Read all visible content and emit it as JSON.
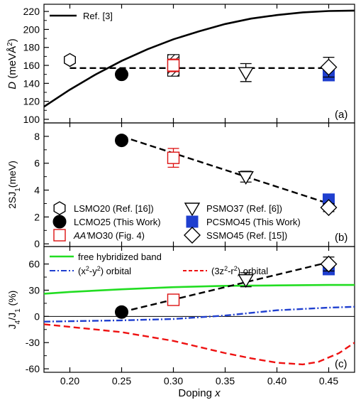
{
  "chart_data": {
    "type": "multi-panel",
    "x_axis": {
      "label_prefix": "Doping ",
      "label_var": "x",
      "range": [
        0.175,
        0.475
      ],
      "ticks": [
        0.2,
        0.25,
        0.3,
        0.35,
        0.4,
        0.45
      ],
      "tick_labels": [
        "0.20",
        "0.25",
        "0.30",
        "0.35",
        "0.40",
        "0.45"
      ]
    },
    "legend_entries": [
      {
        "marker": "hexagon-open",
        "label": "LSMO20 (Ref. [16])",
        "color": "#000000"
      },
      {
        "marker": "circle-filled",
        "label": "LCMO25 (This Work)",
        "color": "#000000"
      },
      {
        "marker": "square-open",
        "label_italic": "AA'",
        "label": "MO30 (Fig. 4)",
        "color": "#dd1111"
      },
      {
        "marker": "triangle-down-open",
        "label": "PSMO37 (Ref. [6])",
        "color": "#000000"
      },
      {
        "marker": "square-filled",
        "label": "PCSMO45 (This Work)",
        "color": "#1f3fcf"
      },
      {
        "marker": "diamond-open",
        "label": "SSMO45 (Ref. [15])",
        "color": "#000000"
      }
    ],
    "panels": [
      {
        "id": "a",
        "panel_label": "(a)",
        "y_label_var": "D",
        "y_label_unit": " (meVÅ",
        "y_label_sup": "2",
        "y_label_close": ")",
        "ylim": [
          96,
          228
        ],
        "y_ticks": [
          100,
          120,
          140,
          160,
          180,
          200,
          220
        ],
        "y_tick_labels": [
          "100",
          "120",
          "140",
          "160",
          "180",
          "200",
          "220"
        ],
        "series": [
          {
            "name": "Ref. [3]",
            "type": "line",
            "style": "solid",
            "color": "#000000",
            "x": [
              0.175,
              0.2,
              0.225,
              0.25,
              0.275,
              0.3,
              0.325,
              0.35,
              0.375,
              0.4,
              0.425,
              0.45,
              0.475
            ],
            "y": [
              114,
              133,
              150,
              165,
              178,
              189,
              198,
              206,
              212,
              216,
              219,
              220.5,
              221
            ]
          },
          {
            "type": "line",
            "style": "dashed",
            "color": "#000000",
            "x": [
              0.2,
              0.45
            ],
            "y": [
              157,
              157
            ]
          },
          {
            "type": "points",
            "marker": "hexagon-open",
            "color": "#000000",
            "x": [
              0.2
            ],
            "y": [
              166
            ],
            "err": [
              3
            ]
          },
          {
            "type": "points",
            "marker": "circle-filled",
            "color": "#000000",
            "x": [
              0.25
            ],
            "y": [
              150
            ],
            "err": [
              0
            ]
          },
          {
            "type": "points",
            "marker": "square-open",
            "color": "#dd1111",
            "x": [
              0.3
            ],
            "y": [
              160
            ],
            "err": [
              7
            ]
          },
          {
            "type": "points",
            "marker": "triangle-down-open",
            "color": "#000000",
            "x": [
              0.37
            ],
            "y": [
              152
            ],
            "err": [
              10
            ]
          },
          {
            "type": "points",
            "marker": "square-filled",
            "color": "#1f3fcf",
            "x": [
              0.45
            ],
            "y": [
              149
            ],
            "err": [
              0
            ]
          },
          {
            "type": "points",
            "marker": "diamond-open",
            "color": "#000000",
            "x": [
              0.45
            ],
            "y": [
              158
            ],
            "err": [
              11
            ]
          }
        ],
        "hatched_band": {
          "x": 0.3,
          "y": [
            148,
            172
          ]
        }
      },
      {
        "id": "b",
        "panel_label": "(b)",
        "y_label_pre": "2SJ",
        "y_label_sub": "1",
        "y_label_post": "(meV)",
        "ylim": [
          -0.2,
          9.0
        ],
        "y_ticks": [
          0,
          2,
          4,
          6,
          8
        ],
        "y_tick_labels": [
          "0",
          "2",
          "4",
          "6",
          "8"
        ],
        "series": [
          {
            "type": "line",
            "style": "dashed",
            "color": "#000000",
            "x": [
              0.25,
              0.45
            ],
            "y": [
              8.0,
              3.0
            ]
          },
          {
            "type": "points",
            "marker": "circle-filled",
            "color": "#000000",
            "x": [
              0.25
            ],
            "y": [
              7.7
            ],
            "err": [
              0
            ]
          },
          {
            "type": "points",
            "marker": "square-open",
            "color": "#dd1111",
            "x": [
              0.3
            ],
            "y": [
              6.4
            ],
            "err": [
              0.7
            ]
          },
          {
            "type": "points",
            "marker": "triangle-down-open",
            "color": "#000000",
            "x": [
              0.37
            ],
            "y": [
              5.0
            ],
            "err": [
              0.4
            ]
          },
          {
            "type": "points",
            "marker": "square-filled",
            "color": "#1f3fcf",
            "x": [
              0.45
            ],
            "y": [
              3.3
            ],
            "err": [
              0
            ]
          },
          {
            "type": "points",
            "marker": "diamond-open",
            "color": "#000000",
            "x": [
              0.45
            ],
            "y": [
              2.7
            ],
            "err": [
              0.3
            ]
          }
        ]
      },
      {
        "id": "c",
        "panel_label": "(c)",
        "y_label_pre": "J",
        "y_label_sub": "4",
        "y_label_mid": "/J",
        "y_label_sub2": "1",
        "y_label_post": " (%)",
        "ylim": [
          -64,
          80
        ],
        "y_ticks": [
          -60,
          -30,
          0,
          30,
          60
        ],
        "y_tick_labels": [
          "-60",
          "-30",
          "0",
          "30",
          "60"
        ],
        "legend_lines": [
          {
            "label": "free hybridized band",
            "color": "#22dd22",
            "style": "solid"
          },
          {
            "label_pre": "(x",
            "label_sup": "2",
            "label_mid": "-y",
            "label_sup2": "2",
            "label_post": ") orbital",
            "color": "#1f3fcf",
            "style": "dashdot"
          },
          {
            "label_pre": "(3z",
            "label_sup": "2",
            "label_mid": "-r",
            "label_sup2": "2",
            "label_post": ") orbital",
            "color": "#ee1111",
            "style": "dashed"
          }
        ],
        "series": [
          {
            "name": "free hybridized band",
            "type": "line",
            "style": "solid",
            "color": "#22dd22",
            "x": [
              0.175,
              0.2,
              0.25,
              0.3,
              0.35,
              0.4,
              0.45,
              0.475
            ],
            "y": [
              26,
              28,
              31,
              33.5,
              35,
              35.5,
              36,
              36
            ]
          },
          {
            "type": "line",
            "style": "dashdot",
            "color": "#1f3fcf",
            "x": [
              0.175,
              0.2,
              0.25,
              0.3,
              0.35,
              0.4,
              0.45,
              0.475
            ],
            "y": [
              -6,
              -5.5,
              -4.5,
              -3,
              1,
              7,
              10,
              11
            ]
          },
          {
            "type": "line",
            "style": "dashed",
            "color": "#ee1111",
            "x": [
              0.175,
              0.2,
              0.25,
              0.3,
              0.35,
              0.375,
              0.4,
              0.425,
              0.44,
              0.46,
              0.475
            ],
            "y": [
              -9,
              -12,
              -18,
              -28,
              -42,
              -48,
              -53,
              -55,
              -52,
              -42,
              -30
            ]
          },
          {
            "type": "line",
            "style": "dashed",
            "color": "#000000",
            "x": [
              0.25,
              0.45
            ],
            "y": [
              5,
              62
            ]
          },
          {
            "type": "points",
            "marker": "circle-filled",
            "color": "#000000",
            "x": [
              0.25
            ],
            "y": [
              5
            ],
            "err": [
              0
            ]
          },
          {
            "type": "points",
            "marker": "square-open",
            "color": "#dd1111",
            "x": [
              0.3
            ],
            "y": [
              19
            ],
            "err": [
              5
            ]
          },
          {
            "type": "points",
            "marker": "triangle-down-open",
            "color": "#000000",
            "x": [
              0.37
            ],
            "y": [
              42
            ],
            "err": [
              8
            ]
          },
          {
            "type": "points",
            "marker": "square-filled",
            "color": "#1f3fcf",
            "x": [
              0.45
            ],
            "y": [
              54
            ],
            "err": [
              0
            ]
          },
          {
            "type": "points",
            "marker": "diamond-open",
            "color": "#000000",
            "x": [
              0.45
            ],
            "y": [
              60
            ],
            "err": [
              8
            ]
          }
        ]
      }
    ]
  }
}
